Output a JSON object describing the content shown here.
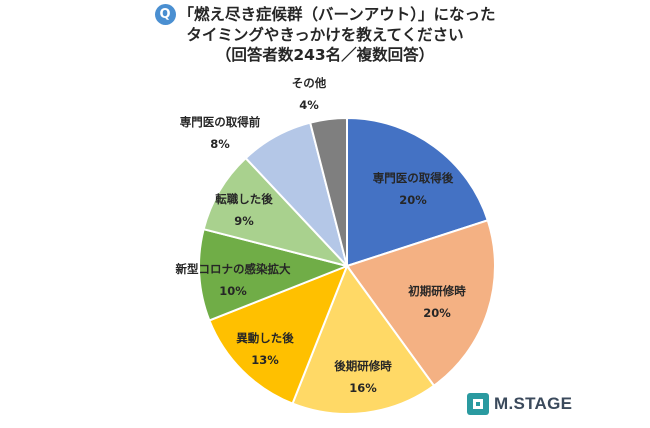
{
  "title": {
    "badge": "Q",
    "line1": "「燃え尽き症候群（バーンアウト）」になった",
    "line2": "タイミングやきっかけを教えてください",
    "line3": "（回答者数243名／複数回答）"
  },
  "brand": {
    "name": "M.STAGE",
    "logo_icon": "m-stage-logo-icon",
    "logo_color": "#2a9aa0"
  },
  "chart_data": {
    "type": "pie",
    "start": "12 o'clock, clockwise",
    "slices": [
      {
        "label": "専門医の取得後",
        "value": 20,
        "value_label": "20%",
        "color": "#4472c4"
      },
      {
        "label": "初期研修時",
        "value": 20,
        "value_label": "20%",
        "color": "#f4b183"
      },
      {
        "label": "後期研修時",
        "value": 16,
        "value_label": "16%",
        "color": "#ffd966"
      },
      {
        "label": "異動した後",
        "value": 13,
        "value_label": "13%",
        "color": "#ffc000"
      },
      {
        "label": "新型コロナの感染拡大",
        "value": 10,
        "value_label": "10%",
        "color": "#70ad47"
      },
      {
        "label": "転職した後",
        "value": 9,
        "value_label": "9%",
        "color": "#a9d18e"
      },
      {
        "label": "専門医の取得前",
        "value": 8,
        "value_label": "8%",
        "color": "#b4c7e7"
      },
      {
        "label": "その他",
        "value": 4,
        "value_label": "4%",
        "color": "#7f7f7f"
      }
    ]
  }
}
